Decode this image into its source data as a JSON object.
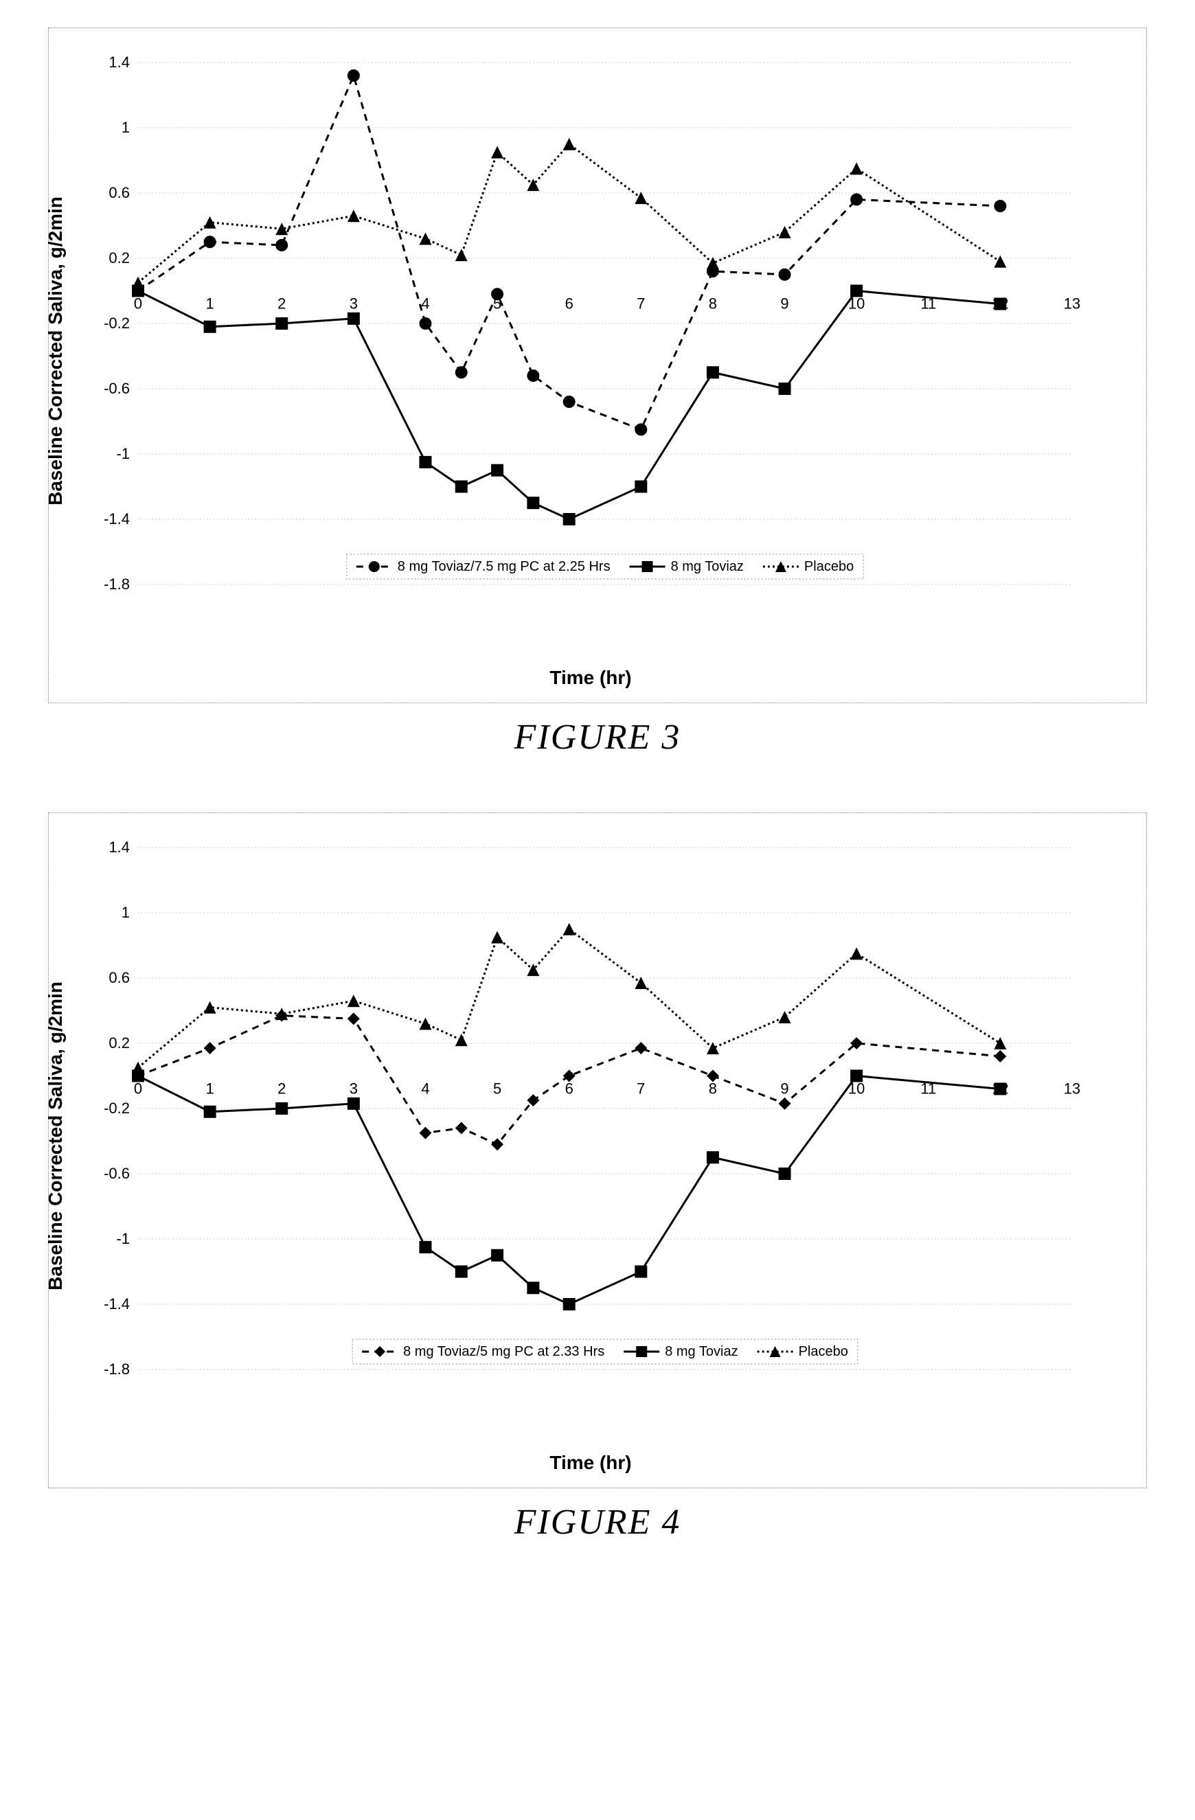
{
  "figure3": {
    "caption": "FIGURE 3",
    "type": "line",
    "xlabel": "Time (hr)",
    "ylabel": "Baseline Corrected Saliva, g/2min",
    "xlim": [
      0,
      13
    ],
    "ylim": [
      -1.8,
      1.4
    ],
    "xtick_step": 1,
    "ytick_step": 0.4,
    "tick_fontsize": 22,
    "label_fontsize": 28,
    "label_fontweight": "bold",
    "background_color": "#ffffff",
    "grid_color": "#cccccc",
    "grid_dash": "2,3",
    "border_dash": "2,3",
    "border_color": "#888888",
    "marker_size": 9,
    "line_width": 3,
    "series": [
      {
        "name": "8 mg Toviaz/7.5 mg PC at 2.25 Hrs",
        "marker": "circle",
        "dash": "10,8",
        "color": "#000000",
        "x": [
          0,
          1,
          2,
          3,
          4,
          4.5,
          5,
          5.5,
          6,
          7,
          8,
          9,
          10,
          12
        ],
        "y": [
          0.0,
          0.3,
          0.28,
          1.32,
          -0.2,
          -0.5,
          -0.02,
          -0.52,
          -0.68,
          -0.85,
          0.12,
          0.1,
          0.56,
          0.52
        ]
      },
      {
        "name": "8 mg Toviaz",
        "marker": "square",
        "dash": "none",
        "color": "#000000",
        "x": [
          0,
          1,
          2,
          3,
          4,
          4.5,
          5,
          5.5,
          6,
          7,
          8,
          9,
          10,
          12
        ],
        "y": [
          0.0,
          -0.22,
          -0.2,
          -0.17,
          -1.05,
          -1.2,
          -1.1,
          -1.3,
          -1.4,
          -1.2,
          -0.5,
          -0.6,
          0.0,
          -0.08
        ]
      },
      {
        "name": "Placebo",
        "marker": "triangle",
        "dash": "3,4",
        "color": "#000000",
        "x": [
          0,
          1,
          2,
          3,
          4,
          4.5,
          5,
          5.5,
          6,
          7,
          8,
          9,
          10,
          12
        ],
        "y": [
          0.05,
          0.42,
          0.38,
          0.46,
          0.32,
          0.22,
          0.85,
          0.65,
          0.9,
          0.57,
          0.17,
          0.36,
          0.75,
          0.18
        ]
      }
    ]
  },
  "figure4": {
    "caption": "FIGURE 4",
    "type": "line",
    "xlabel": "Time (hr)",
    "ylabel": "Baseline Corrected Saliva, g/2min",
    "xlim": [
      0,
      13
    ],
    "ylim": [
      -1.8,
      1.4
    ],
    "xtick_step": 1,
    "ytick_step": 0.4,
    "tick_fontsize": 22,
    "label_fontsize": 28,
    "label_fontweight": "bold",
    "background_color": "#ffffff",
    "grid_color": "#cccccc",
    "grid_dash": "2,3",
    "border_dash": "2,3",
    "border_color": "#888888",
    "marker_size": 9,
    "line_width": 3,
    "series": [
      {
        "name": "8 mg Toviaz/5 mg PC at 2.33 Hrs",
        "marker": "diamond",
        "dash": "10,8",
        "color": "#000000",
        "x": [
          0,
          1,
          2,
          3,
          4,
          4.5,
          5,
          5.5,
          6,
          7,
          8,
          9,
          10,
          12
        ],
        "y": [
          0.0,
          0.17,
          0.37,
          0.35,
          -0.35,
          -0.32,
          -0.42,
          -0.15,
          0.0,
          0.17,
          0.0,
          -0.17,
          0.2,
          0.12
        ]
      },
      {
        "name": "8 mg Toviaz",
        "marker": "square",
        "dash": "none",
        "color": "#000000",
        "x": [
          0,
          1,
          2,
          3,
          4,
          4.5,
          5,
          5.5,
          6,
          7,
          8,
          9,
          10,
          12
        ],
        "y": [
          0.0,
          -0.22,
          -0.2,
          -0.17,
          -1.05,
          -1.2,
          -1.1,
          -1.3,
          -1.4,
          -1.2,
          -0.5,
          -0.6,
          0.0,
          -0.08
        ]
      },
      {
        "name": "Placebo",
        "marker": "triangle",
        "dash": "3,4",
        "color": "#000000",
        "x": [
          0,
          1,
          2,
          3,
          4,
          4.5,
          5,
          5.5,
          6,
          7,
          8,
          9,
          10,
          12
        ],
        "y": [
          0.05,
          0.42,
          0.38,
          0.46,
          0.32,
          0.22,
          0.85,
          0.65,
          0.9,
          0.57,
          0.17,
          0.36,
          0.75,
          0.2
        ]
      }
    ]
  }
}
